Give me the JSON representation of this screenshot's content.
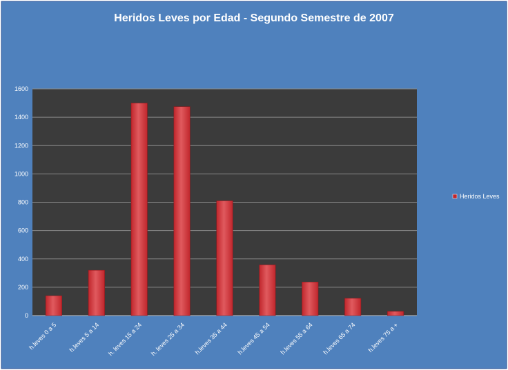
{
  "colors": {
    "chart_background": "#4f81bd",
    "plot_background": "#3b3b3b",
    "bar": "#c0262c",
    "bar_highlight": "#e05a5e",
    "text": "#ffffff",
    "gridline": "#8a8a8a"
  },
  "chart_data": {
    "type": "bar",
    "title": "Heridos Leves por Edad  - Segundo Semestre de 2007",
    "xlabel": "",
    "ylabel": "",
    "ylim": [
      0,
      1600
    ],
    "yticks": [
      0,
      200,
      400,
      600,
      800,
      1000,
      1200,
      1400,
      1600
    ],
    "grid": true,
    "legend": "right",
    "categories": [
      "h.leves 0 a 5",
      "h.leves 5 a 14",
      "h. leves 15 a 24",
      "h. leves 25 a 34",
      "h.leves 35 a 44",
      "h.leves 45 a 54",
      "h.leves 55 a 64",
      "h.leves 65 a 74",
      "h.leves 75 a +"
    ],
    "series": [
      {
        "name": "Heridos Leves",
        "values": [
          140,
          320,
          1500,
          1475,
          810,
          358,
          237,
          122,
          30
        ]
      }
    ]
  }
}
